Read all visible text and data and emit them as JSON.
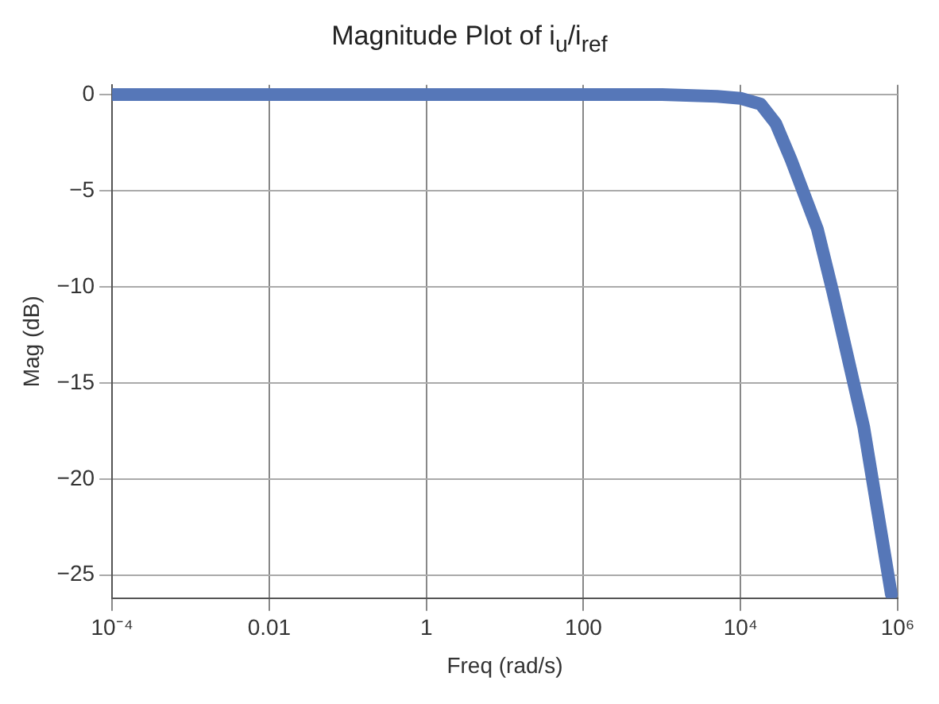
{
  "chart_data": {
    "type": "line",
    "title": "Magnitude Plot of i$_{u}$/i$_{ref}$",
    "xlabel": "Freq (rad/s)",
    "ylabel": "Mag (dB)",
    "log": "x",
    "grid": true,
    "legend": false,
    "marker": "none",
    "line_style": "solid",
    "xlim": [
      0.0001,
      1000000
    ],
    "ylim": [
      -26.2,
      0.5
    ],
    "xticks": [
      {
        "value": 0.0001,
        "label": "10⁻⁴"
      },
      0.01,
      1,
      100,
      {
        "value": 10000,
        "label": "10⁴"
      },
      {
        "value": 1000000,
        "label": "10⁶"
      }
    ],
    "yticks": [
      0,
      {
        "value": -5,
        "label": "−5"
      },
      {
        "value": -10,
        "label": "−10"
      },
      {
        "value": -15,
        "label": "−15"
      },
      {
        "value": -20,
        "label": "−20"
      },
      {
        "value": -25,
        "label": "−25"
      }
    ],
    "series": [
      {
        "color": "#5677b8",
        "x": [
          0.0001,
          1,
          1000,
          5000,
          10000,
          18000,
          28000,
          44000,
          95000,
          150000,
          370000,
          830000
        ],
        "values": [
          0,
          0,
          0,
          -0.1,
          -0.2,
          -0.5,
          -1.5,
          -3.4,
          -7,
          -10.3,
          -17.3,
          -26
        ]
      }
    ]
  }
}
